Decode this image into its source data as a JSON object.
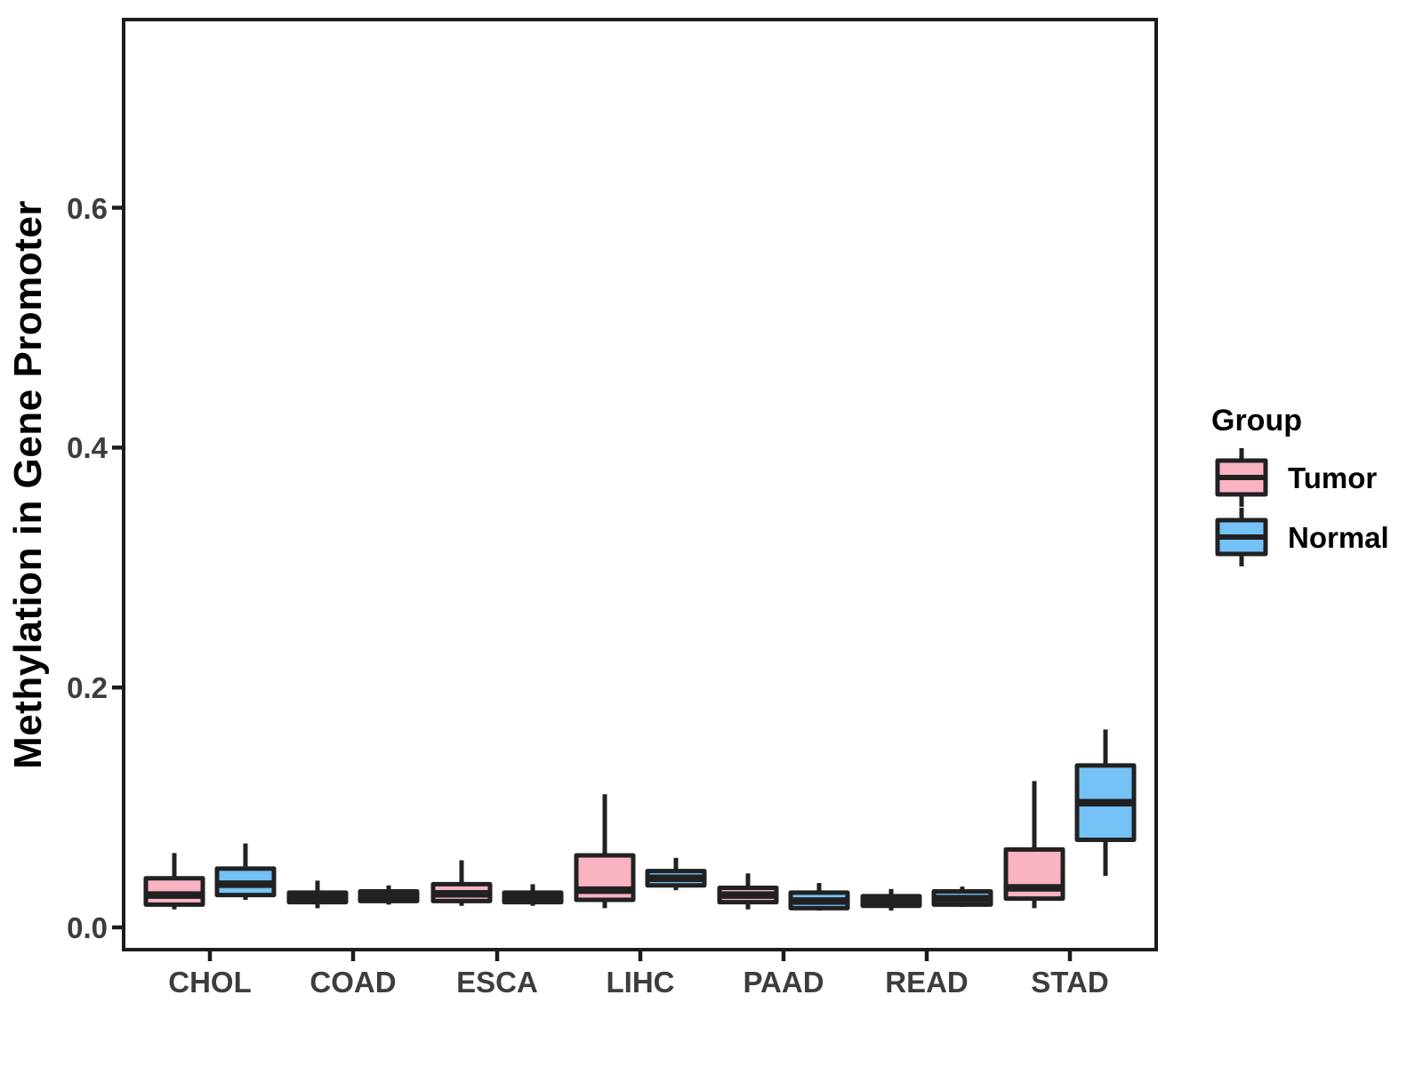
{
  "chart_data": {
    "type": "boxplot",
    "title": "",
    "xlabel": "",
    "ylabel": "Methylation in Gene Promoter",
    "categories": [
      "CHOL",
      "COAD",
      "ESCA",
      "LIHC",
      "PAAD",
      "READ",
      "STAD"
    ],
    "y_tick_labels": [
      "0.0",
      "0.2",
      "0.4",
      "0.6"
    ],
    "y_tick_values": [
      0.0,
      0.2,
      0.4,
      0.6
    ],
    "ylim": [
      -0.019,
      0.757
    ],
    "grid": false,
    "legend": {
      "title": "Group",
      "position": "right",
      "items": [
        {
          "label": "Tumor",
          "color": "#FAB3C3"
        },
        {
          "label": "Normal",
          "color": "#74C2F6"
        }
      ]
    },
    "series": [
      {
        "name": "Tumor",
        "fill": "#FAB3C3",
        "boxes": [
          {
            "category": "CHOL",
            "whisker_low": 0.015,
            "q1": 0.019,
            "median": 0.027,
            "q3": 0.041,
            "whisker_high": 0.062
          },
          {
            "category": "COAD",
            "whisker_low": 0.016,
            "q1": 0.021,
            "median": 0.025,
            "q3": 0.029,
            "whisker_high": 0.039
          },
          {
            "category": "ESCA",
            "whisker_low": 0.018,
            "q1": 0.022,
            "median": 0.028,
            "q3": 0.036,
            "whisker_high": 0.056
          },
          {
            "category": "LIHC",
            "whisker_low": 0.016,
            "q1": 0.023,
            "median": 0.031,
            "q3": 0.06,
            "whisker_high": 0.111
          },
          {
            "category": "PAAD",
            "whisker_low": 0.015,
            "q1": 0.021,
            "median": 0.027,
            "q3": 0.033,
            "whisker_high": 0.045
          },
          {
            "category": "READ",
            "whisker_low": 0.014,
            "q1": 0.018,
            "median": 0.022,
            "q3": 0.026,
            "whisker_high": 0.032
          },
          {
            "category": "STAD",
            "whisker_low": 0.016,
            "q1": 0.024,
            "median": 0.033,
            "q3": 0.065,
            "whisker_high": 0.122
          }
        ]
      },
      {
        "name": "Normal",
        "fill": "#74C2F6",
        "boxes": [
          {
            "category": "CHOL",
            "whisker_low": 0.023,
            "q1": 0.027,
            "median": 0.036,
            "q3": 0.049,
            "whisker_high": 0.07
          },
          {
            "category": "COAD",
            "whisker_low": 0.019,
            "q1": 0.022,
            "median": 0.026,
            "q3": 0.03,
            "whisker_high": 0.035
          },
          {
            "category": "ESCA",
            "whisker_low": 0.018,
            "q1": 0.021,
            "median": 0.025,
            "q3": 0.029,
            "whisker_high": 0.036
          },
          {
            "category": "LIHC",
            "whisker_low": 0.031,
            "q1": 0.035,
            "median": 0.041,
            "q3": 0.047,
            "whisker_high": 0.058
          },
          {
            "category": "PAAD",
            "whisker_low": 0.014,
            "q1": 0.016,
            "median": 0.022,
            "q3": 0.029,
            "whisker_high": 0.037
          },
          {
            "category": "READ",
            "whisker_low": 0.017,
            "q1": 0.019,
            "median": 0.024,
            "q3": 0.03,
            "whisker_high": 0.034
          },
          {
            "category": "STAD",
            "whisker_low": 0.043,
            "q1": 0.073,
            "median": 0.104,
            "q3": 0.135,
            "whisker_high": 0.165
          }
        ]
      }
    ],
    "colors": {
      "tumor_fill": "#FAB3C3",
      "normal_fill": "#74C2F6",
      "box_border": "#212121",
      "panel_border": "#1c1c1c",
      "axis_text": "#3d3d3d",
      "title_text": "#000000",
      "background": "#ffffff"
    }
  }
}
